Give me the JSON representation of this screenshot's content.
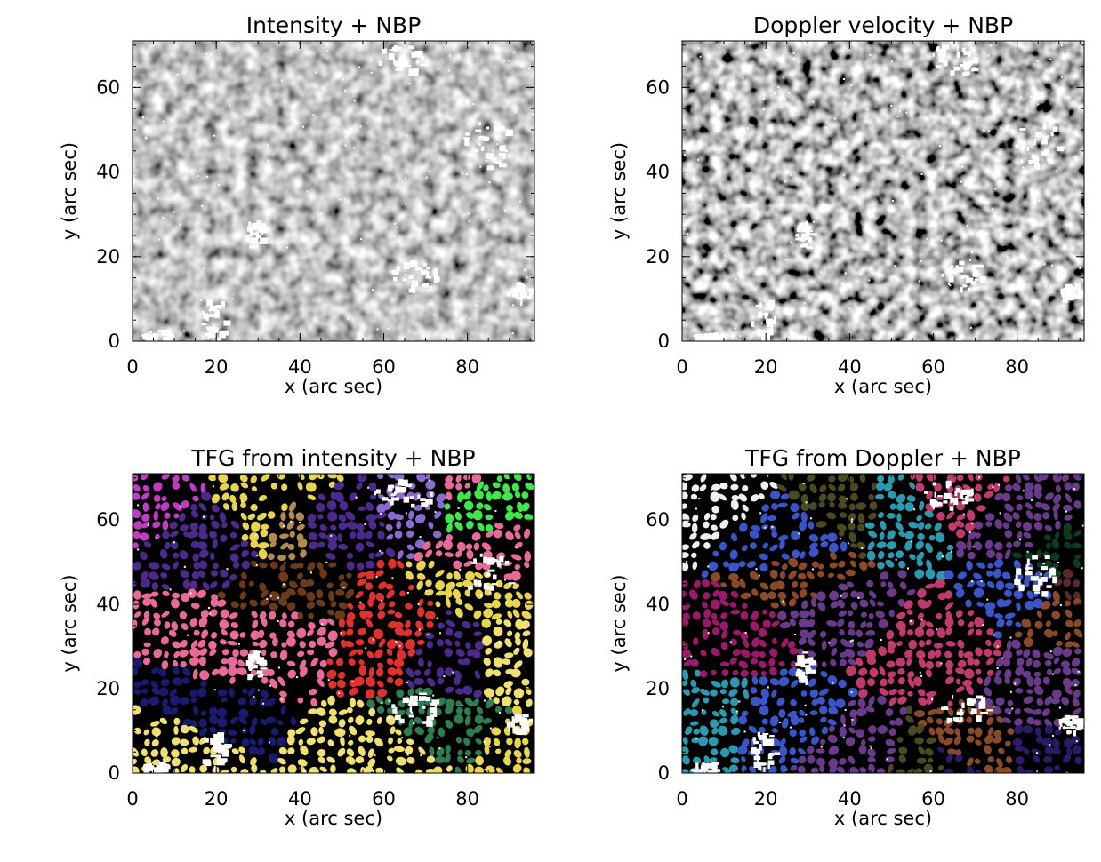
{
  "chart_data": [
    {
      "type": "heatmap",
      "title": "Intensity + NBP",
      "xlabel": "x (arc sec)",
      "ylabel": "y (arc sec)",
      "xlim": [
        0,
        96
      ],
      "ylim": [
        0,
        71
      ],
      "x_ticks": [
        "0",
        "20",
        "40",
        "60",
        "80"
      ],
      "y_ticks": [
        "0",
        "20",
        "40",
        "60"
      ],
      "colormap": "grayscale",
      "overlay_color": "#ffffff"
    },
    {
      "type": "heatmap",
      "title": "Doppler velocity + NBP",
      "xlabel": "x (arc sec)",
      "ylabel": "y (arc sec)",
      "xlim": [
        0,
        96
      ],
      "ylim": [
        0,
        71
      ],
      "x_ticks": [
        "0",
        "20",
        "40",
        "60",
        "80"
      ],
      "y_ticks": [
        "0",
        "20",
        "40",
        "60"
      ],
      "colormap": "grayscale",
      "overlay_color": "#ffffff"
    },
    {
      "type": "heatmap",
      "title": "TFG from intensity + NBP",
      "xlabel": "x (arc sec)",
      "ylabel": "y (arc sec)",
      "xlim": [
        0,
        96
      ],
      "ylim": [
        0,
        71
      ],
      "x_ticks": [
        "0",
        "20",
        "40",
        "60",
        "80"
      ],
      "y_ticks": [
        "0",
        "20",
        "40",
        "60"
      ],
      "colormap": "categorical",
      "background": "#000000",
      "overlay_color": "#ffffff",
      "palette": [
        "#e8d44d",
        "#c23bc4",
        "#9b1f9b",
        "#3ee84a",
        "#f2b8c6",
        "#5ac05a",
        "#d27a3c",
        "#b08a4e",
        "#e86a9a",
        "#2e7d4f",
        "#4b2a8c",
        "#5bc3e8",
        "#e03030",
        "#1a1a6e",
        "#6a3a1a",
        "#8a6ad0",
        "#f0e070"
      ]
    },
    {
      "type": "heatmap",
      "title": "TFG from Doppler + NBP",
      "xlabel": "x (arc sec)",
      "ylabel": "y (arc sec)",
      "xlim": [
        0,
        96
      ],
      "ylim": [
        0,
        71
      ],
      "x_ticks": [
        "0",
        "20",
        "40",
        "60",
        "80"
      ],
      "y_ticks": [
        "0",
        "20",
        "40",
        "60"
      ],
      "colormap": "categorical",
      "background": "#000000",
      "overlay_color": "#ffffff",
      "palette": [
        "#3a55c8",
        "#9a1a6a",
        "#e8c84a",
        "#2a1a6a",
        "#0e3a22",
        "#4a3ad8",
        "#a8c8e0",
        "#3ed06a",
        "#6a3a8a",
        "#c03a70",
        "#4a4a22",
        "#8a4a2a",
        "#2a9ab0",
        "#d26a2a",
        "#5a2a2a",
        "#f0f0f0"
      ]
    }
  ]
}
